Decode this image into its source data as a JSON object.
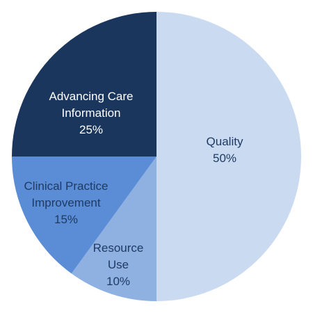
{
  "chart_data": {
    "type": "pie",
    "slices": [
      {
        "label_lines": [
          "Quality",
          "50%"
        ],
        "category": "Quality",
        "value": 50,
        "color": "#C9DAF1",
        "text_color": "#1F3A63"
      },
      {
        "label_lines": [
          "Resource",
          "Use",
          "10%"
        ],
        "category": "Resource Use",
        "value": 10,
        "color": "#8EB1E2",
        "text_color": "#1F3A63"
      },
      {
        "label_lines": [
          "Clinical Practice",
          "Improvement",
          "15%"
        ],
        "category": "Clinical Practice Improvement",
        "value": 15,
        "color": "#5A8DD6",
        "text_color": "#1F3A63"
      },
      {
        "label_lines": [
          "Advancing Care",
          "Information",
          "25%"
        ],
        "category": "Advancing Care Information",
        "value": 25,
        "color": "#1B365D",
        "text_color": "#FFFFFF"
      }
    ]
  }
}
